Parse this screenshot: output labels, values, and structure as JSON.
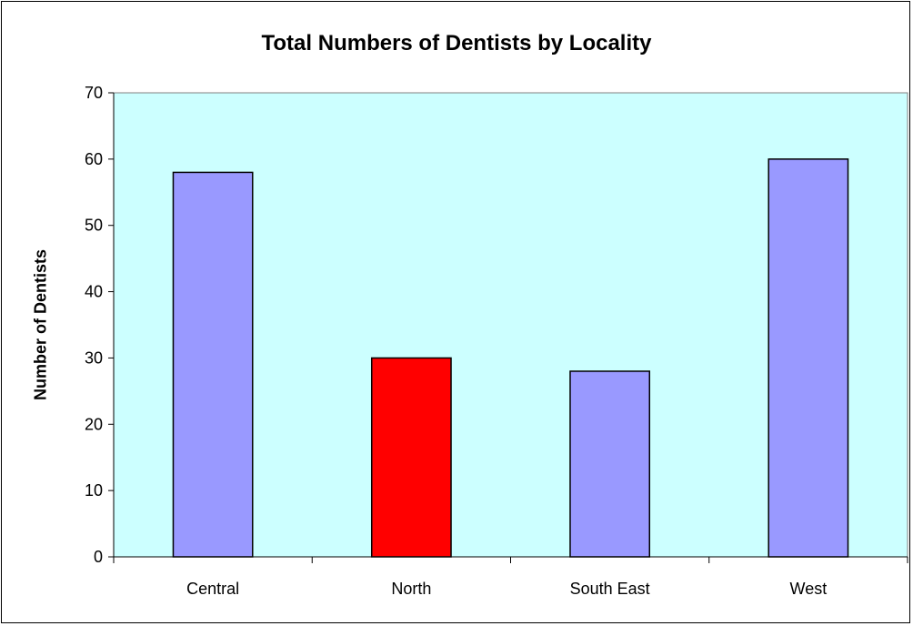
{
  "chart_data": {
    "type": "bar",
    "title": "Total Numbers of Dentists by Locality",
    "xlabel": "",
    "ylabel": "Number of Dentists",
    "categories": [
      "Central",
      "North",
      "South East",
      "West"
    ],
    "values": [
      58,
      30,
      28,
      60
    ],
    "ylim": [
      0,
      70
    ],
    "yticks": [
      0,
      10,
      20,
      30,
      40,
      50,
      60,
      70
    ],
    "grid": false,
    "legend": "none",
    "colors": {
      "plot_background": "#ccffff",
      "bar_default": "#9999ff",
      "bar_highlight": "#ff0000",
      "bar_outline": "#000000"
    },
    "highlight_category": "North"
  }
}
